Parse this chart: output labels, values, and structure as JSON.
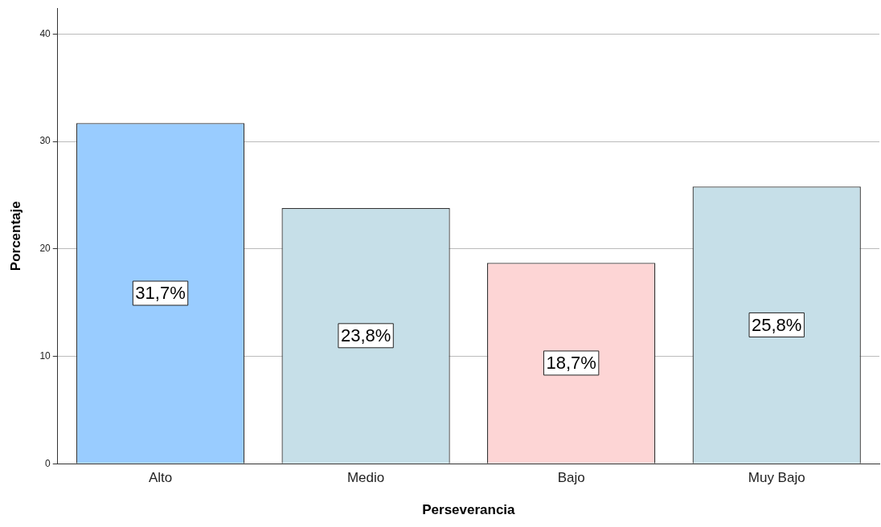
{
  "chart_data": {
    "type": "bar",
    "xlabel": "Perseverancia",
    "ylabel": "Porcentaje",
    "categories": [
      "Alto",
      "Medio",
      "Bajo",
      "Muy Bajo"
    ],
    "values": [
      31.7,
      23.8,
      18.7,
      25.8
    ],
    "colors": [
      "#99ccff",
      "#c6dfe8",
      "#fdd5d5",
      "#c6dfe8"
    ],
    "value_labels": [
      "31,7%",
      "23,8%",
      "18,7%",
      "25,8%"
    ],
    "ylim": [
      0,
      42.4
    ],
    "yticks": [
      0,
      10,
      20,
      30,
      40
    ],
    "grid": "y",
    "legend": false
  }
}
